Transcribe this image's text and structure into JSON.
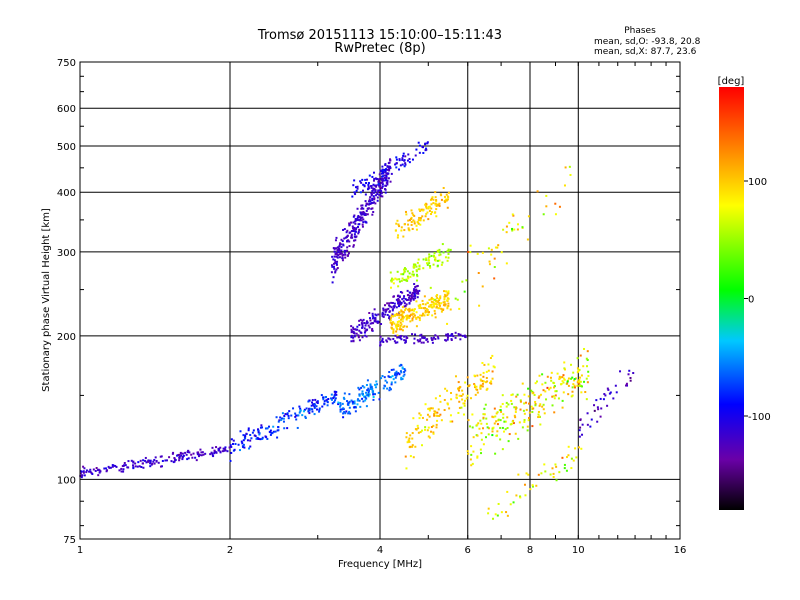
{
  "chart_data": {
    "type": "scatter",
    "title": "Tromsø 20151113 15:10:00–15:11:43",
    "subtitle": "RwPretec (8p)",
    "xlabel": "Frequency [MHz]",
    "ylabel": "Stationary phase Virtual Height [km]",
    "x_scale": "log",
    "y_scale": "log",
    "xlim": [
      1,
      16
    ],
    "ylim": [
      75,
      750
    ],
    "x_ticks": [
      "1",
      "2",
      "4",
      "6",
      "8",
      "10",
      "16"
    ],
    "y_ticks": [
      "75",
      "100",
      "200",
      "300",
      "400",
      "500",
      "600",
      "750"
    ],
    "grid": true,
    "annotation": {
      "header": "Phases",
      "line1": "mean, sd,O: -93.8, 20.8",
      "line2": "mean, sd,X:  87.7, 23.6"
    },
    "colorbar": {
      "label": "[deg]",
      "ticks": [
        "100",
        "0",
        "-100"
      ],
      "range": [
        -180,
        180
      ]
    },
    "clusters": [
      {
        "x": [
          1.0,
          2.0
        ],
        "y": [
          103,
          116
        ],
        "phase": -120,
        "spread_y": 4,
        "count": 180,
        "jitter": 30
      },
      {
        "x": [
          2.0,
          3.3
        ],
        "y": [
          116,
          150
        ],
        "phase": -80,
        "spread_y": 10,
        "count": 180,
        "jitter": 50
      },
      {
        "x": [
          3.2,
          4.2
        ],
        "y": [
          280,
          450
        ],
        "phase": -120,
        "spread_y": 40,
        "count": 320,
        "jitter": 30
      },
      {
        "x": [
          3.5,
          4.8
        ],
        "y": [
          200,
          250
        ],
        "phase": -120,
        "spread_y": 15,
        "count": 200,
        "jitter": 30
      },
      {
        "x": [
          3.3,
          4.5
        ],
        "y": [
          140,
          170
        ],
        "phase": -60,
        "spread_y": 12,
        "count": 150,
        "jitter": 40
      },
      {
        "x": [
          4.3,
          5.5
        ],
        "y": [
          330,
          390
        ],
        "phase": 100,
        "spread_y": 30,
        "count": 110,
        "jitter": 30
      },
      {
        "x": [
          4.2,
          5.5
        ],
        "y": [
          210,
          240
        ],
        "phase": 100,
        "spread_y": 18,
        "count": 210,
        "jitter": 30
      },
      {
        "x": [
          4.2,
          5.5
        ],
        "y": [
          260,
          300
        ],
        "phase": 60,
        "spread_y": 20,
        "count": 100,
        "jitter": 40
      },
      {
        "x": [
          4.0,
          6.0
        ],
        "y": [
          195,
          200
        ],
        "phase": -120,
        "spread_y": 6,
        "count": 90,
        "jitter": 20
      },
      {
        "x": [
          4.5,
          6.8
        ],
        "y": [
          120,
          170
        ],
        "phase": 100,
        "spread_y": 20,
        "count": 160,
        "jitter": 50
      },
      {
        "x": [
          6.0,
          10.5
        ],
        "y": [
          120,
          170
        ],
        "phase": 80,
        "spread_y": 25,
        "count": 260,
        "jitter": 90
      },
      {
        "x": [
          6.5,
          10.5
        ],
        "y": [
          85,
          115
        ],
        "phase": 80,
        "spread_y": 10,
        "count": 50,
        "jitter": 80
      },
      {
        "x": [
          10.0,
          13.0
        ],
        "y": [
          130,
          170
        ],
        "phase": -120,
        "spread_y": 15,
        "count": 40,
        "jitter": 40
      },
      {
        "x": [
          3.5,
          5.0
        ],
        "y": [
          400,
          500
        ],
        "phase": -100,
        "spread_y": 30,
        "count": 90,
        "jitter": 40
      },
      {
        "x": [
          5.0,
          10.0
        ],
        "y": [
          220,
          450
        ],
        "phase": 90,
        "spread_y": 60,
        "count": 60,
        "jitter": 80
      }
    ]
  }
}
